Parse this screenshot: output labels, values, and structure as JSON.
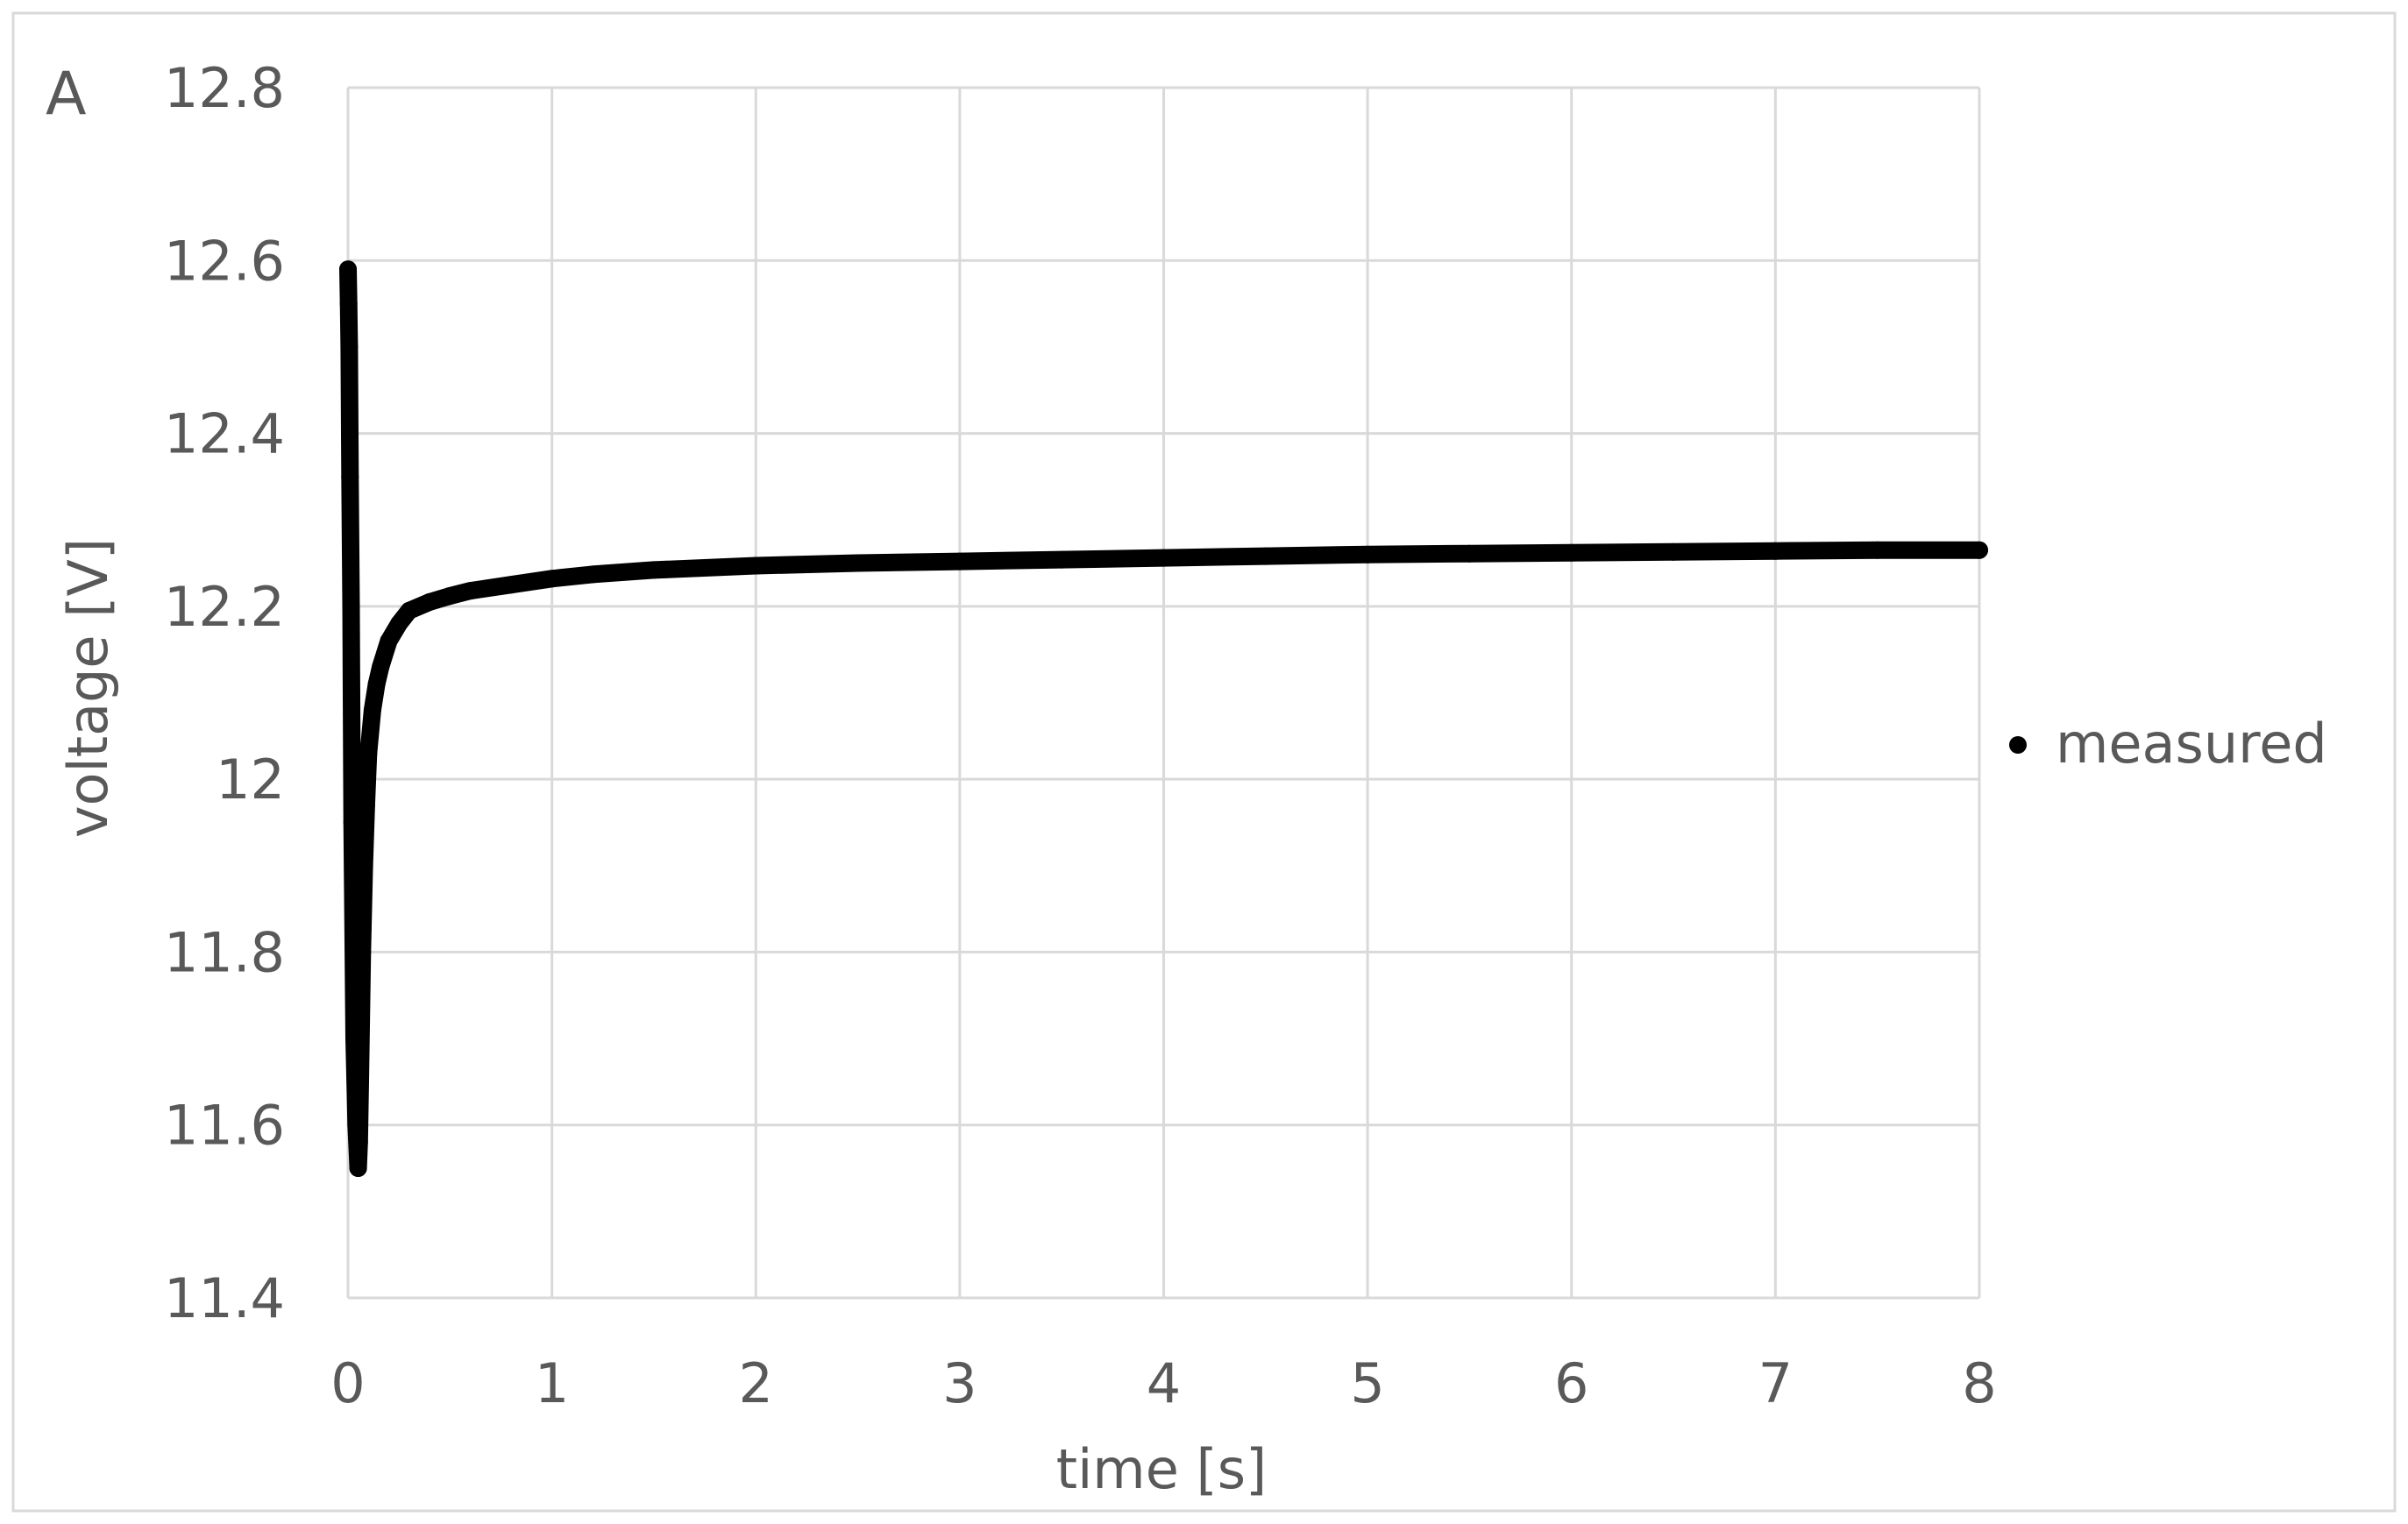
{
  "chart_data": {
    "type": "scatter",
    "panel_label": "A",
    "title": "",
    "xlabel": "time [s]",
    "ylabel": "voltage [V]",
    "xlim": [
      0,
      8
    ],
    "ylim": [
      11.4,
      12.8
    ],
    "x_ticks": [
      "0",
      "1",
      "2",
      "3",
      "4",
      "5",
      "6",
      "7",
      "8"
    ],
    "y_ticks": [
      "11.4",
      "11.6",
      "11.8",
      "12",
      "12.2",
      "12.4",
      "12.6",
      "12.8"
    ],
    "grid": true,
    "legend_position": "right",
    "series": [
      {
        "name": "measured",
        "color": "#000000",
        "x": [
          0.0,
          0.003,
          0.006,
          0.01,
          0.015,
          0.02,
          0.03,
          0.04,
          0.05,
          0.055,
          0.06,
          0.07,
          0.08,
          0.09,
          0.1,
          0.12,
          0.14,
          0.16,
          0.2,
          0.25,
          0.3,
          0.4,
          0.5,
          0.6,
          0.8,
          1.0,
          1.2,
          1.5,
          2.0,
          2.5,
          3.0,
          3.5,
          4.0,
          4.5,
          5.0,
          5.5,
          6.0,
          6.5,
          7.0,
          7.5,
          8.0
        ],
        "y": [
          12.59,
          12.55,
          12.5,
          12.35,
          12.2,
          11.95,
          11.7,
          11.6,
          11.55,
          11.58,
          11.65,
          11.8,
          11.9,
          11.97,
          12.03,
          12.08,
          12.11,
          12.13,
          12.16,
          12.18,
          12.195,
          12.205,
          12.212,
          12.218,
          12.225,
          12.232,
          12.237,
          12.242,
          12.247,
          12.25,
          12.252,
          12.254,
          12.256,
          12.258,
          12.26,
          12.261,
          12.262,
          12.263,
          12.264,
          12.265,
          12.265
        ]
      }
    ]
  }
}
